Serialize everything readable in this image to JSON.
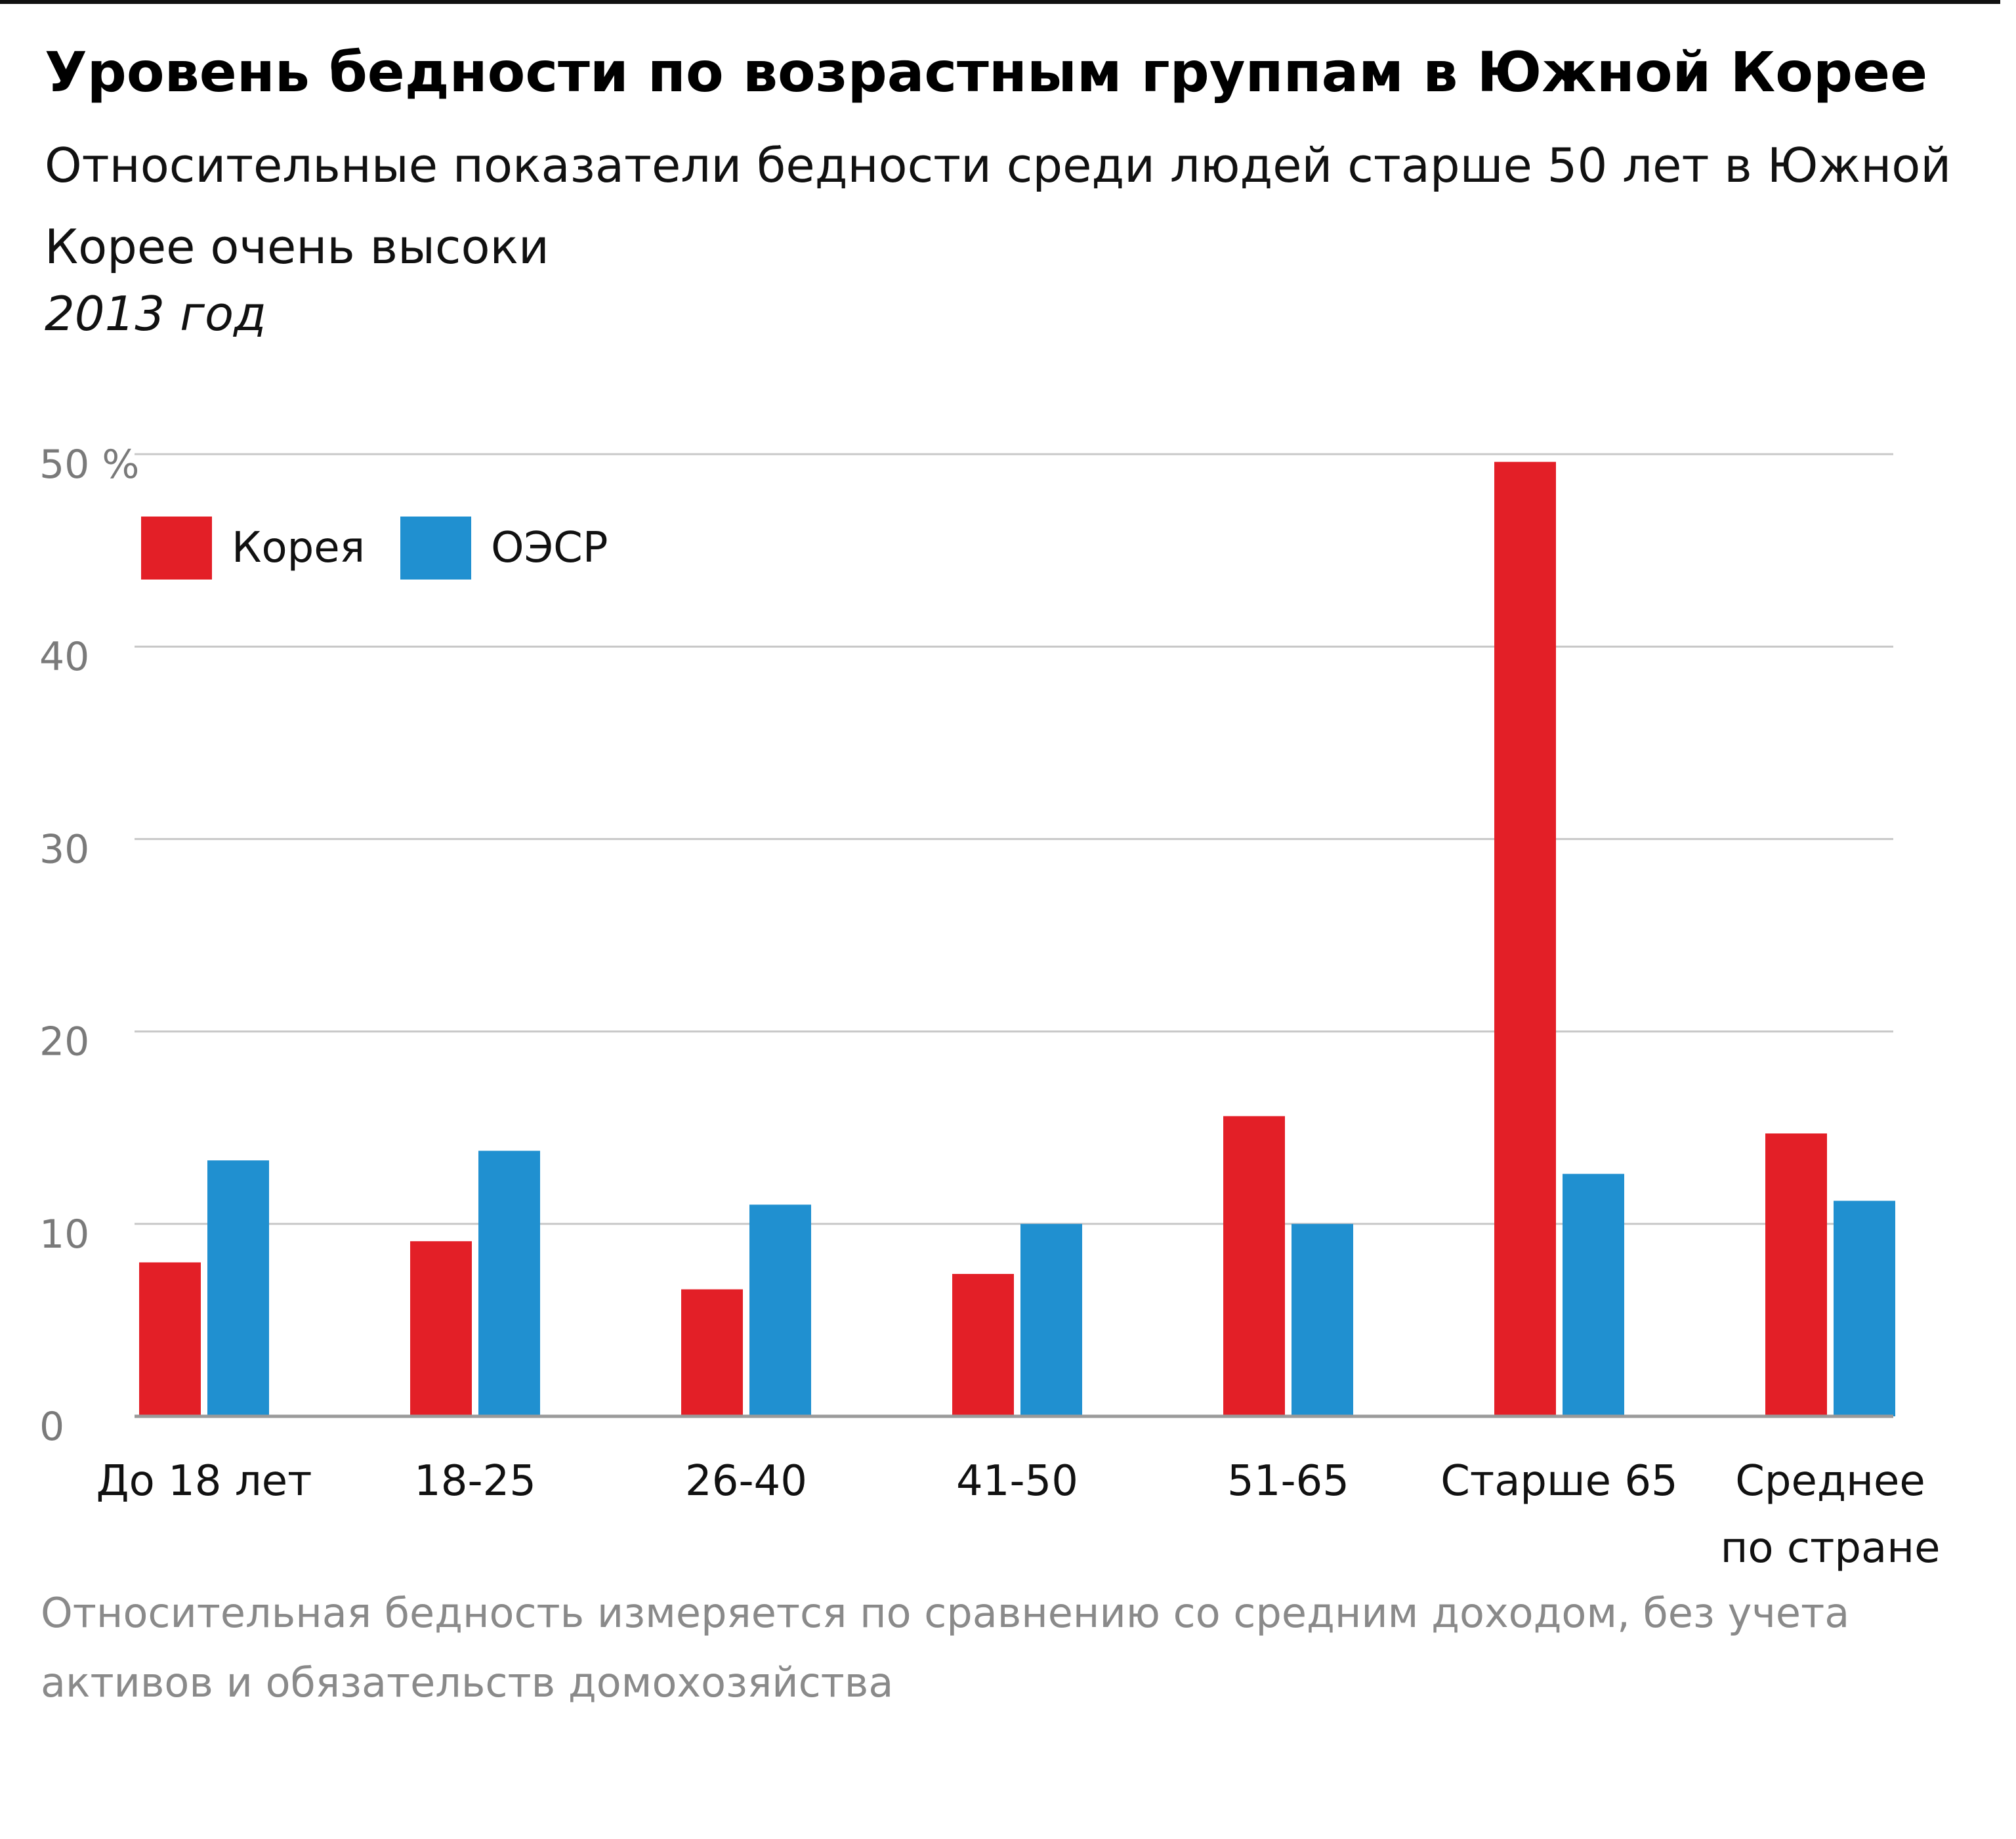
{
  "chart_data": {
    "type": "bar",
    "title": "Уровень бедности по возрастным группам в Южной Корее",
    "subtitle": "Относительные показатели бедности среди людей старше 50 лет в Южной Корее очень высоки",
    "year_label": "2013 год",
    "categories": [
      [
        "До 18 лет"
      ],
      [
        "18-25"
      ],
      [
        "26-40"
      ],
      [
        "41-50"
      ],
      [
        "51-65"
      ],
      [
        "Старше 65"
      ],
      [
        "Среднее",
        "по стране"
      ]
    ],
    "series": [
      {
        "name": "Корея",
        "color": "#e31f27",
        "values": [
          8.0,
          9.1,
          6.6,
          7.4,
          15.6,
          49.6,
          14.7
        ]
      },
      {
        "name": "ОЭСР",
        "color": "#2090d0",
        "values": [
          13.3,
          13.8,
          11.0,
          10.0,
          10.0,
          12.6,
          11.2
        ]
      }
    ],
    "ylim": [
      0,
      50
    ],
    "yticks": [
      0,
      10,
      20,
      30,
      40,
      50
    ],
    "ytick_labels": [
      "0",
      "10",
      "20",
      "30",
      "40",
      "50 %"
    ],
    "xlabel": "",
    "ylabel": "",
    "grid": true,
    "legend_position": "top-left",
    "footnote": "Относительная бедность измеряется по сравнению со средним доходом, без учета активов и обязательств домохозяйства"
  },
  "colors": {
    "korea": "#e31f27",
    "oecd": "#2090d0",
    "grid": "#c8c8c8",
    "axis": "#9a9a9a",
    "footnote": "#8a8a8a"
  }
}
